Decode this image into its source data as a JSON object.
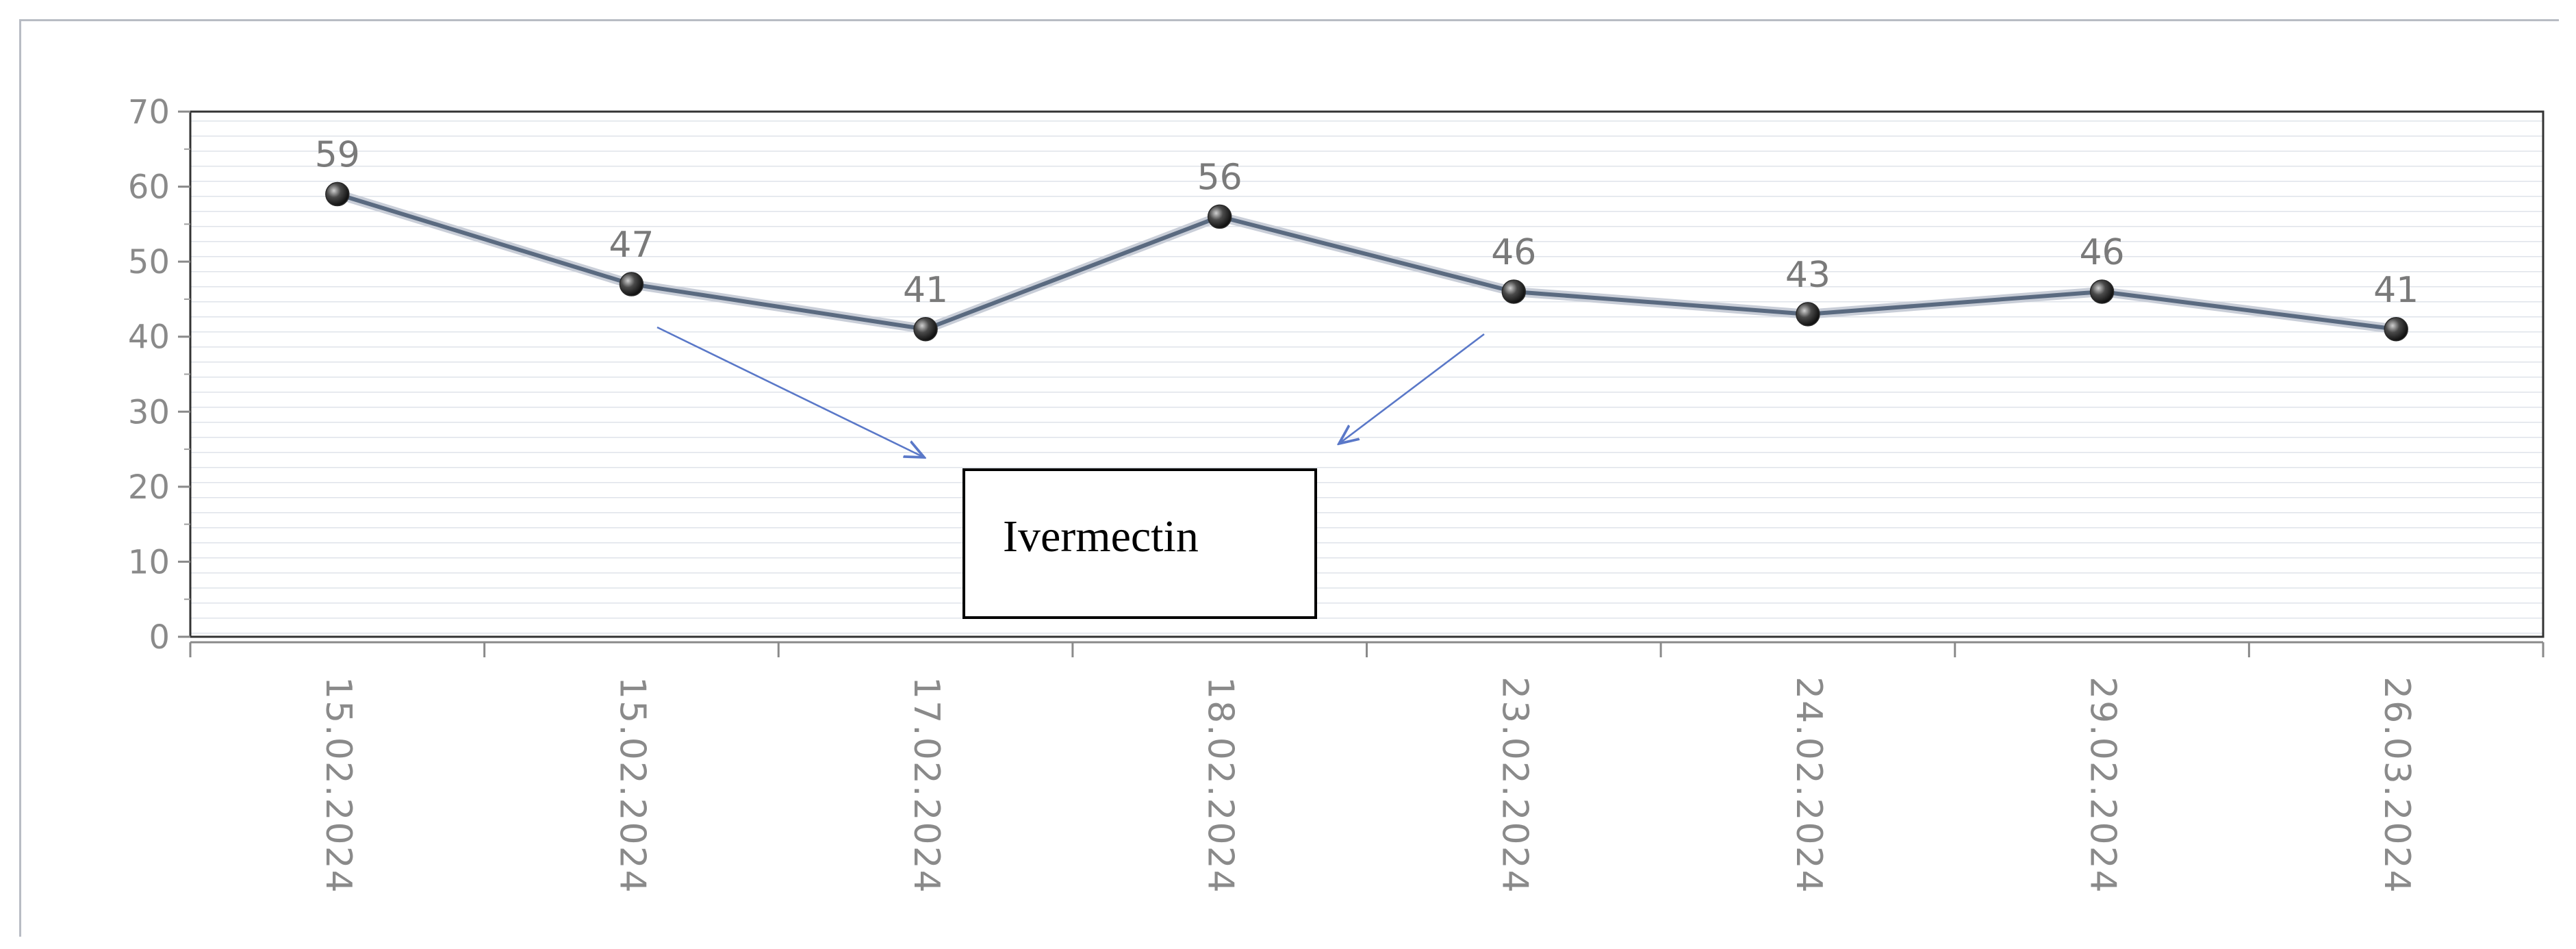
{
  "chart_data": {
    "type": "line",
    "title": "",
    "xlabel": "",
    "ylabel": "",
    "categories": [
      "15.02.2024",
      "15.02.2024",
      "17.02.2024",
      "18.02.2024",
      "23.02.2024",
      "24.02.2024",
      "29.02.2024",
      "26.03.2024"
    ],
    "series": [
      {
        "values": [
          59,
          47,
          41,
          56,
          46,
          43,
          46,
          41
        ]
      }
    ],
    "ylim": [
      0,
      70
    ],
    "yticks": [
      0,
      10,
      20,
      30,
      40,
      50,
      60,
      70
    ],
    "grid": true,
    "data_labels": true,
    "line_color": "#5a6a80",
    "marker_color": "#2a2a2a",
    "annotation": {
      "text": "Ivermectin",
      "arrow_color": "#5a78c8"
    }
  }
}
